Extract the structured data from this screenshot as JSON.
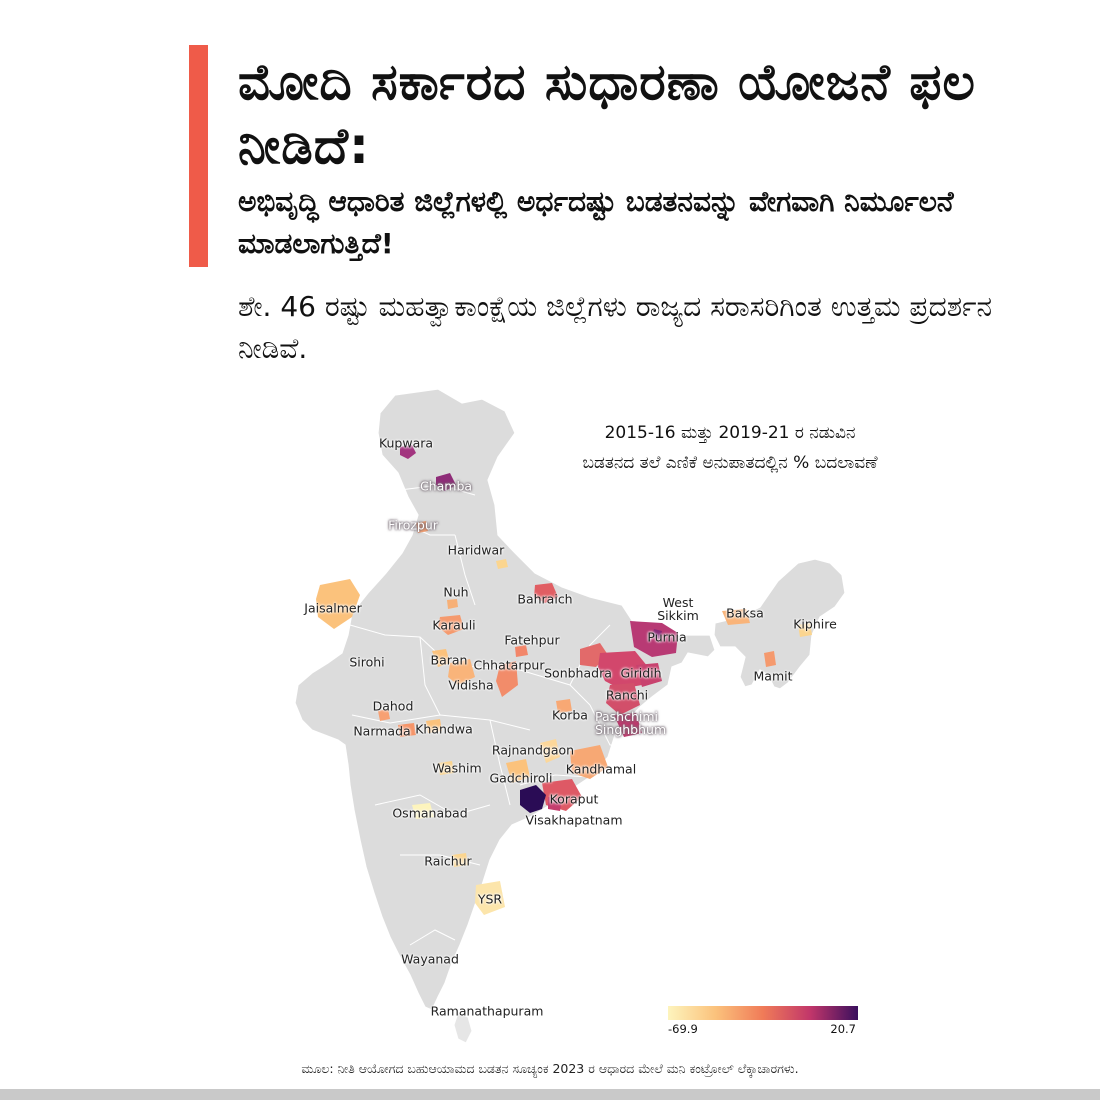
{
  "headline": "ಮೋದಿ ಸರ್ಕಾರದ ಸುಧಾರಣಾ ಯೋಜನೆ ಫಲ ನೀಡಿದೆ:",
  "subheadline": "ಅಭಿವೃದ್ಧಿ ಆಧಾರಿತ ಜಿಲ್ಲೆಗಳಲ್ಲಿ ಅರ್ಧದಷ್ಟು ಬಡತನವನ್ನು ವೇಗವಾಗಿ ನಿರ್ಮೂಲನೆ ಮಾಡಲಾಗುತ್ತಿದೆ!",
  "statement": "ಶೇ. 46 ರಷ್ಟು ಮಹತ್ವಾಕಾಂಕ್ಷೆಯ ಜಿಲ್ಲೆಗಳು ರಾಜ್ಯದ ಸರಾಸರಿಗಿಂತ ಉತ್ತಮ ಪ್ರದರ್ಶನ ನೀಡಿವೆ.",
  "map": {
    "title": "2015-16 ಮತ್ತು 2019-21 ರ ನಡುವಿನ ಬಡತನದ ತಲೆ ಎಣಿಕೆ ಅನುಪಾತದಲ್ಲಿನ % ಬದಲಾವಣೆ",
    "district_labels": [
      "Kupwara",
      "Chamba",
      "Firozpur",
      "Haridwar",
      "Nuh",
      "Bahraich",
      "Jaisalmer",
      "Karauli",
      "Fatehpur",
      "West Sikkim",
      "Baksa",
      "Kiphire",
      "Purnia",
      "Sirohi",
      "Baran",
      "Chhatarpur",
      "Sonbhadra",
      "Giridih",
      "Vidisha",
      "Mamit",
      "Ranchi",
      "Dahod",
      "Korba",
      "Pashchimi Singhbhum",
      "Narmada",
      "Khandwa",
      "Rajnandgaon",
      "Washim",
      "Kandhamal",
      "Gadchiroli",
      "Koraput",
      "Osmanabad",
      "Visakhapatnam",
      "Raichur",
      "YSR",
      "Wayanad",
      "Ramanathapuram"
    ],
    "districts": [
      {
        "name": "Kupwara",
        "change": 5
      },
      {
        "name": "Chamba",
        "change": 8
      },
      {
        "name": "Firozpur",
        "change": -40
      },
      {
        "name": "Bahraich",
        "change": -10
      },
      {
        "name": "Jaisalmer",
        "change": -55
      },
      {
        "name": "Karauli",
        "change": -45
      },
      {
        "name": "Purnia",
        "change": -5
      },
      {
        "name": "Sonbhadra",
        "change": -20
      },
      {
        "name": "Giridih",
        "change": -15
      },
      {
        "name": "Ranchi",
        "change": -18
      },
      {
        "name": "Koraput",
        "change": -20
      },
      {
        "name": "Visakhapatnam",
        "change": 20.7
      },
      {
        "name": "YSR",
        "change": -65
      },
      {
        "name": "Osmanabad",
        "change": -69.9
      }
    ]
  },
  "legend": {
    "min_label": "-69.9",
    "max_label": "20.7",
    "min": -69.9,
    "max": 20.7,
    "colors": [
      "#fdf4bd",
      "#fbc27c",
      "#f07b58",
      "#c1366a",
      "#3a0f5e"
    ]
  },
  "source": "ಮೂಲ: ನೀತಿ ಆಯೋಗದ ಬಹುಆಯಾಮದ ಬಡತನ ಸೂಚ್ಯಂಕ 2023 ರ ಆಧಾರದ ಮೇಲೆ ಮನಿ ಕಂಟ್ರೋಲ್ ಲೆಕ್ಕಾಚಾರಗಳು."
}
